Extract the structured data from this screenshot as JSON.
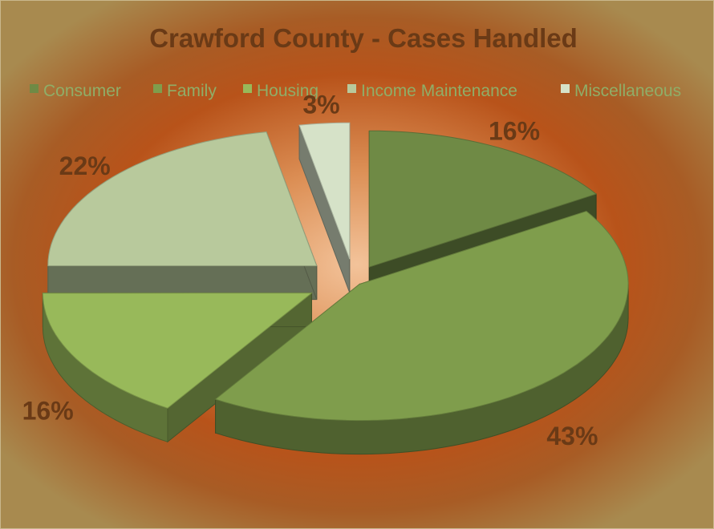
{
  "chart_data": {
    "type": "pie",
    "title": "Crawford County - Cases Handled",
    "categories": [
      "Consumer",
      "Family",
      "Housing",
      "Income Maintenance",
      "Miscellaneous"
    ],
    "values": [
      16,
      43,
      16,
      22,
      3
    ],
    "data_labels": [
      "16%",
      "43%",
      "16%",
      "22%",
      "3%"
    ],
    "colors": [
      "#6f8a45",
      "#7f9d4c",
      "#98b95a",
      "#b8c99c",
      "#d6e2c8"
    ],
    "legend_position": "top",
    "exploded": true,
    "style": "3d"
  }
}
